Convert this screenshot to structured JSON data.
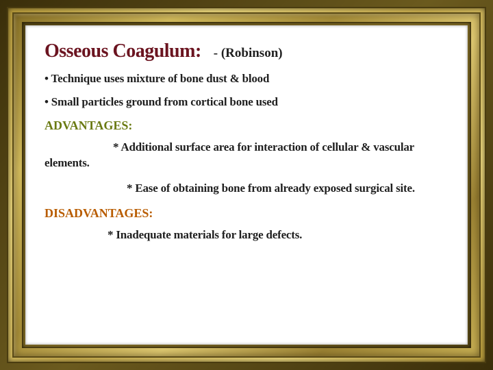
{
  "colors": {
    "title": "#6b1420",
    "author": "#202020",
    "body": "#202020",
    "advantages": "#6a7a12",
    "disadvantages": "#b85c00",
    "background": "#ffffff",
    "frame_dark": "#3a2e0a",
    "frame_gold_light": "#e8d47a",
    "frame_gold_mid": "#c9ad4e",
    "frame_gold_dark": "#8a7328"
  },
  "typography": {
    "title_fontsize": 28,
    "author_fontsize": 19,
    "body_fontsize": 17,
    "section_fontsize": 18,
    "font_family": "Georgia / serif",
    "weight": 700
  },
  "title": "Osseous Coagulum:",
  "author": "- (Robinson)",
  "bullets": [
    "• Technique uses mixture of bone dust & blood",
    "• Small particles ground from cortical bone used"
  ],
  "advantages": {
    "heading": "ADVANTAGES:",
    "points": [
      "* Additional surface area for interaction of cellular & vascular elements.",
      "* Ease of obtaining bone from already exposed surgical site."
    ]
  },
  "disadvantages": {
    "heading": "DISADVANTAGES:",
    "points": [
      "* Inadequate materials for large defects."
    ]
  }
}
